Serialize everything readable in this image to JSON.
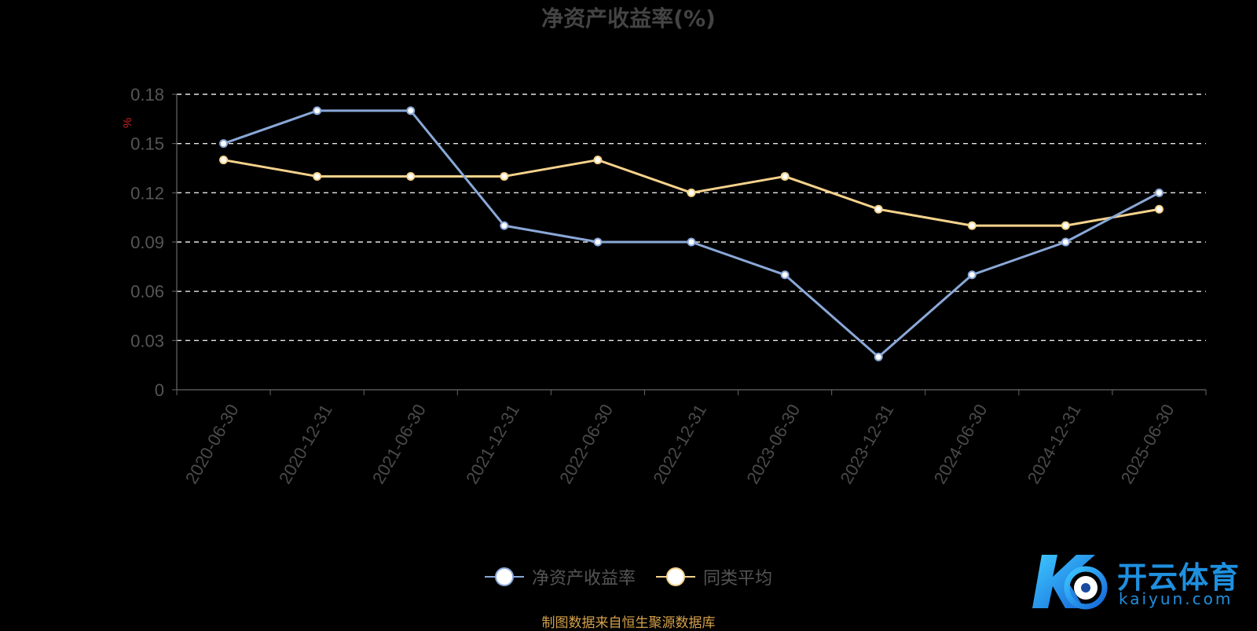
{
  "chart_data": {
    "type": "line",
    "title": "净资产收益率(%)",
    "ylabel": "%",
    "xlabel": "",
    "categories": [
      "2020-06-30",
      "2020-12-31",
      "2021-06-30",
      "2021-12-31",
      "2022-06-30",
      "2022-12-31",
      "2023-06-30",
      "2023-12-31",
      "2024-06-30",
      "2024-12-31",
      "2025-06-30"
    ],
    "y_ticks": [
      "0",
      "0.03",
      "0.06",
      "0.09",
      "0.12",
      "0.15",
      "0.18"
    ],
    "ylim": [
      0,
      0.18
    ],
    "grid": true,
    "legend_position": "bottom",
    "series": [
      {
        "name": "净资产收益率",
        "color": "#8aa8d8",
        "values": [
          0.15,
          0.17,
          0.17,
          0.1,
          0.09,
          0.09,
          0.07,
          0.02,
          0.07,
          0.09,
          0.12
        ]
      },
      {
        "name": "同类平均",
        "color": "#f5d28c",
        "values": [
          0.14,
          0.13,
          0.13,
          0.13,
          0.14,
          0.12,
          0.13,
          0.11,
          0.1,
          0.1,
          0.11
        ]
      }
    ]
  },
  "source_note": "制图数据来自恒生聚源数据库",
  "watermark": {
    "brand": "开云体育",
    "url": "kaiyun.com",
    "logo_icon": "k-ball-logo"
  }
}
